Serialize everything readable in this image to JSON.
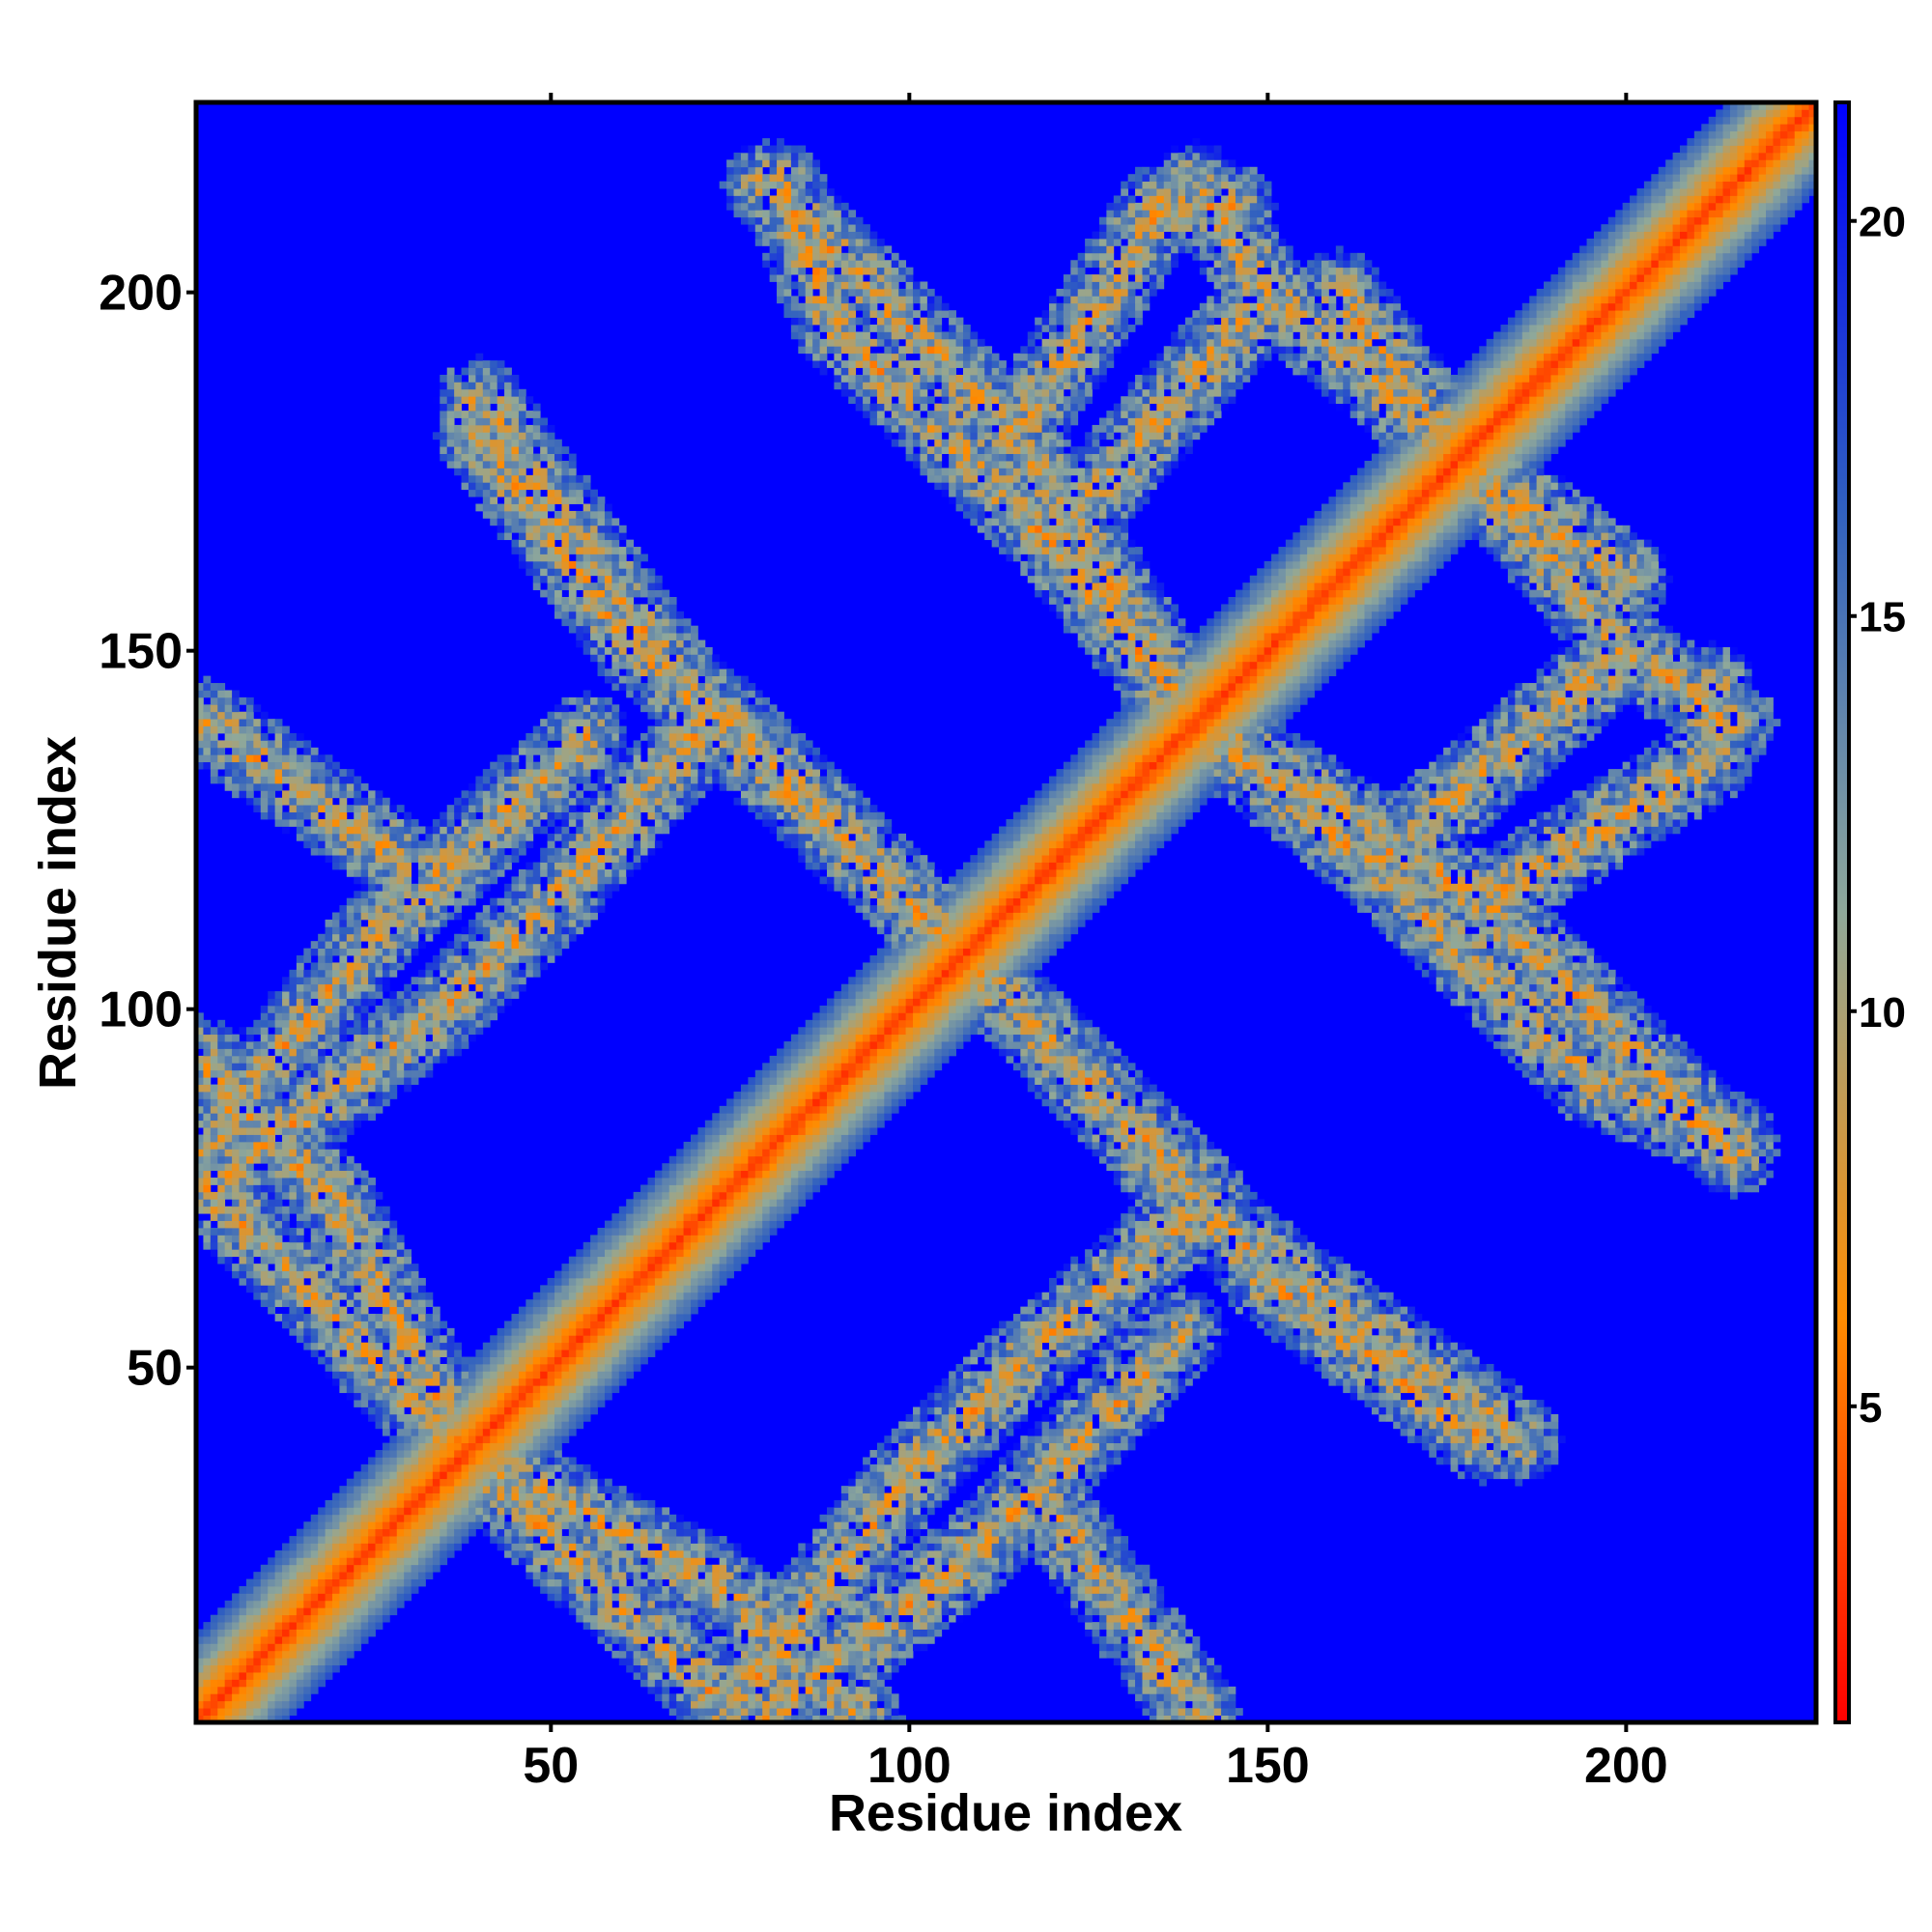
{
  "chart_data": {
    "type": "heatmap",
    "title": "",
    "xlabel": "Residue index",
    "ylabel": "Residue index",
    "xlim": [
      1,
      226
    ],
    "ylim": [
      1,
      226
    ],
    "x_ticks": [
      50,
      100,
      150,
      200
    ],
    "y_ticks": [
      50,
      100,
      150,
      200
    ],
    "colorbar": {
      "range": [
        1,
        21.5
      ],
      "ticks": [
        5,
        10,
        15,
        20
      ],
      "colors": [
        "#ff0000",
        "#ff8c00",
        "#8fa89a",
        "#3060c0",
        "#0000ff"
      ],
      "cutoff": 8
    },
    "background_value": 21.5,
    "description_of_values": "pairwise residue distance; diagonal minimal, off-diagonal contact bands",
    "bands": [
      {
        "name": "main-diagonal",
        "from": [
          1,
          1
        ],
        "to": [
          226,
          226
        ],
        "half_width": 9,
        "peak": 2.5
      },
      {
        "from": [
          1,
          93
        ],
        "to": [
          20,
          73
        ],
        "half_width": 6,
        "peak": 5
      },
      {
        "from": [
          20,
          73
        ],
        "to": [
          38,
          38
        ],
        "half_width": 6,
        "peak": 5
      },
      {
        "from": [
          38,
          38
        ],
        "to": [
          75,
          2
        ],
        "half_width": 6,
        "peak": 5
      },
      {
        "from": [
          75,
          2
        ],
        "to": [
          100,
          35
        ],
        "half_width": 6,
        "peak": 5
      },
      {
        "from": [
          100,
          35
        ],
        "to": [
          115,
          50
        ],
        "half_width": 6,
        "peak": 5
      },
      {
        "from": [
          115,
          50
        ],
        "to": [
          140,
          72
        ],
        "half_width": 6,
        "peak": 5
      },
      {
        "from": [
          140,
          72
        ],
        "to": [
          185,
          40
        ],
        "half_width": 6,
        "peak": 5
      },
      {
        "from": [
          1,
          80
        ],
        "to": [
          25,
          110
        ],
        "half_width": 6,
        "peak": 5
      },
      {
        "from": [
          25,
          110
        ],
        "to": [
          55,
          138
        ],
        "half_width": 6,
        "peak": 5
      },
      {
        "from": [
          2,
          140
        ],
        "to": [
          30,
          120
        ],
        "half_width": 6,
        "peak": 5
      },
      {
        "from": [
          40,
          180
        ],
        "to": [
          62,
          150
        ],
        "half_width": 6,
        "peak": 5
      },
      {
        "from": [
          62,
          150
        ],
        "to": [
          75,
          140
        ],
        "half_width": 6,
        "peak": 5
      },
      {
        "from": [
          80,
          215
        ],
        "to": [
          115,
          180
        ],
        "half_width": 6,
        "peak": 5
      },
      {
        "from": [
          115,
          180
        ],
        "to": [
          135,
          212
        ],
        "half_width": 6,
        "peak": 5
      },
      {
        "from": [
          135,
          212
        ],
        "to": [
          145,
          212
        ],
        "half_width": 6,
        "peak": 5
      },
      {
        "from": [
          115,
          180
        ],
        "to": [
          140,
          140
        ],
        "half_width": 6,
        "peak": 5
      },
      {
        "from": [
          140,
          140
        ],
        "to": [
          165,
          120
        ],
        "half_width": 6,
        "peak": 5
      },
      {
        "from": [
          165,
          120
        ],
        "to": [
          195,
          90
        ],
        "half_width": 6,
        "peak": 5
      },
      {
        "from": [
          195,
          90
        ],
        "to": [
          215,
          82
        ],
        "half_width": 6,
        "peak": 5
      },
      {
        "from": [
          165,
          120
        ],
        "to": [
          200,
          150
        ],
        "half_width": 6,
        "peak": 5
      },
      {
        "from": [
          200,
          150
        ],
        "to": [
          215,
          140
        ],
        "half_width": 6,
        "peak": 5
      },
      {
        "from": [
          75,
          138
        ],
        "to": [
          100,
          115
        ],
        "half_width": 6,
        "peak": 5
      },
      {
        "from": [
          100,
          115
        ],
        "to": [
          130,
          85
        ],
        "half_width": 6,
        "peak": 5
      },
      {
        "from": [
          130,
          85
        ],
        "to": [
          140,
          75
        ],
        "half_width": 6,
        "peak": 5
      },
      {
        "from": [
          150,
          200
        ],
        "to": [
          180,
          175
        ],
        "half_width": 6,
        "peak": 5
      },
      {
        "from": [
          180,
          175
        ],
        "to": [
          200,
          160
        ],
        "half_width": 6,
        "peak": 5
      }
    ]
  }
}
